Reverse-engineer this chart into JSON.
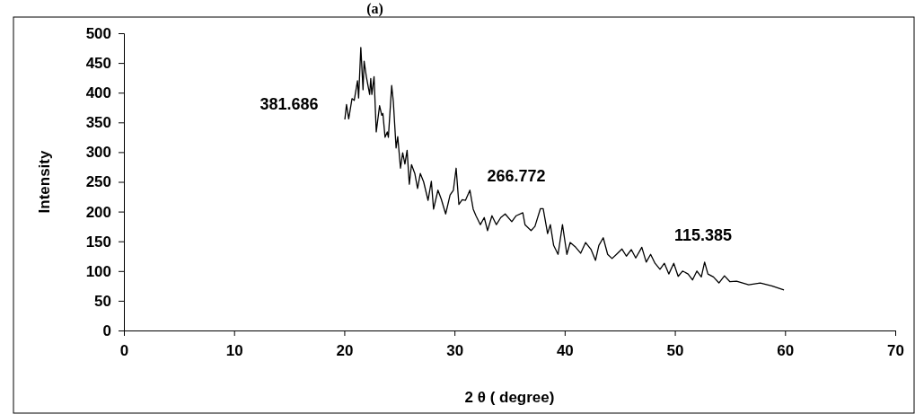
{
  "chart_data": {
    "type": "line",
    "title": "(a)",
    "xlabel": "2 θ ( degree)",
    "ylabel": "Intensity",
    "xlim": [
      0,
      70
    ],
    "xticks": [
      0,
      10,
      20,
      30,
      40,
      50,
      60,
      70
    ],
    "ylim": [
      0,
      500
    ],
    "yticks": [
      0,
      50,
      100,
      150,
      200,
      250,
      300,
      350,
      400,
      450,
      500
    ],
    "grid": false,
    "marker": "none",
    "line_style": "solid",
    "annotations": [
      "381.686",
      "266.772",
      "115.385"
    ],
    "series": [
      {
        "color": "#000000",
        "x": [
          20.05,
          20.2,
          20.4,
          20.7,
          20.9,
          21.2,
          21.3,
          21.5,
          21.7,
          21.8,
          22.0,
          22.3,
          22.4,
          22.5,
          22.7,
          22.9,
          23.2,
          23.4,
          23.5,
          23.7,
          23.9,
          24.0,
          24.3,
          24.45,
          24.7,
          24.85,
          25.1,
          25.3,
          25.5,
          25.7,
          25.9,
          26.1,
          26.4,
          26.65,
          26.9,
          27.2,
          27.6,
          27.9,
          28.1,
          28.5,
          28.8,
          29.2,
          29.6,
          29.9,
          30.15,
          30.4,
          30.7,
          31.0,
          31.4,
          31.7,
          31.95,
          32.35,
          32.7,
          33.0,
          33.4,
          33.8,
          34.2,
          34.6,
          35.2,
          35.6,
          36.2,
          36.4,
          36.95,
          37.3,
          37.8,
          38.05,
          38.45,
          38.7,
          39.0,
          39.4,
          39.8,
          40.2,
          40.5,
          41.0,
          41.45,
          41.9,
          42.4,
          42.8,
          43.1,
          43.5,
          43.9,
          44.3,
          44.7,
          45.2,
          45.6,
          46.05,
          46.45,
          47.0,
          47.4,
          47.8,
          48.2,
          48.65,
          49.05,
          49.45,
          49.9,
          50.3,
          50.7,
          51.2,
          51.6,
          52.0,
          52.4,
          52.7,
          53.0,
          53.5,
          54.0,
          54.5,
          55.0,
          55.6,
          56.7,
          57.75,
          58.8,
          59.9
        ],
        "values": [
          355,
          380,
          356,
          390,
          387,
          420,
          391,
          476,
          405,
          453,
          427,
          397,
          424,
          397,
          427,
          334,
          378,
          362,
          365,
          325,
          334,
          325,
          412,
          385,
          307,
          326,
          273,
          299,
          280,
          303,
          246,
          279,
          264,
          239,
          264,
          250,
          219,
          251,
          204,
          236,
          221,
          196,
          228,
          236,
          273,
          212,
          220,
          219,
          236,
          204,
          193,
          178,
          190,
          168,
          193,
          178,
          190,
          196,
          183,
          193,
          198,
          178,
          168,
          175,
          205,
          205,
          163,
          178,
          143,
          128,
          178,
          128,
          148,
          140,
          130,
          148,
          136,
          118,
          143,
          156,
          128,
          121,
          128,
          137,
          125,
          136,
          122,
          140,
          115,
          128,
          113,
          103,
          113,
          95,
          113,
          91,
          100,
          95,
          85,
          100,
          90,
          115,
          95,
          90,
          80,
          92,
          82,
          83,
          77,
          80,
          75,
          68
        ]
      }
    ]
  }
}
